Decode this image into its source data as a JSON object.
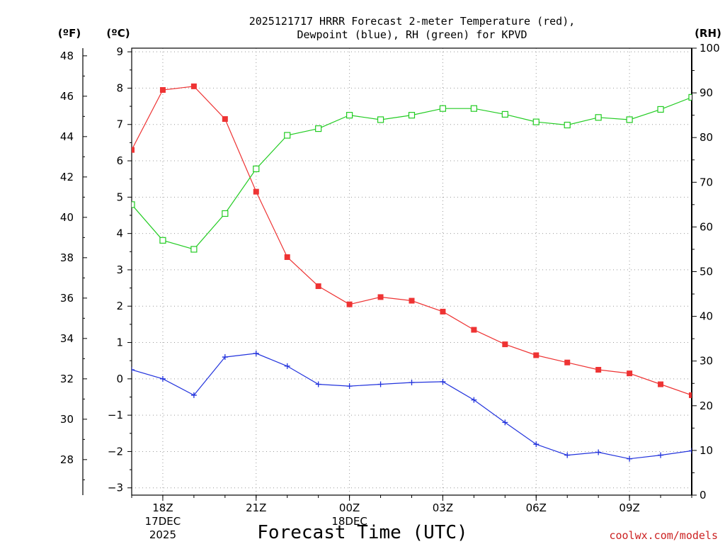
{
  "title_line1": "2025121717 HRRR Forecast 2-meter Temperature (red),",
  "title_line2": "Dewpoint (blue), RH (green) for KPVD",
  "unit_f": "(ºF)",
  "unit_c": "(ºC)",
  "unit_rh": "(RH)",
  "x_axis_label": "Forecast Time (UTC)",
  "credit": "coolwx.com/models",
  "colors": {
    "temperature": "#ee3333",
    "dewpoint": "#2233dd",
    "rh": "#22cc22",
    "credit": "#cc2222"
  },
  "chart_data": {
    "type": "line",
    "x_hours": [
      17,
      18,
      19,
      20,
      21,
      22,
      23,
      24,
      25,
      26,
      27,
      28,
      29,
      30,
      31,
      32,
      33,
      34,
      35
    ],
    "series": [
      {
        "name": "2-meter Temperature",
        "units": "C",
        "axis": "celsius",
        "values": [
          6.3,
          7.95,
          8.05,
          7.15,
          5.15,
          3.35,
          2.55,
          2.05,
          2.25,
          2.15,
          1.85,
          1.35,
          0.95,
          0.65,
          0.45,
          0.25,
          0.15,
          -0.15,
          -0.45
        ]
      },
      {
        "name": "Dewpoint",
        "units": "C",
        "axis": "celsius",
        "values": [
          0.25,
          0.0,
          -0.45,
          0.6,
          0.7,
          0.35,
          -0.15,
          -0.2,
          -0.15,
          -0.1,
          -0.08,
          -0.58,
          -1.2,
          -1.8,
          -2.1,
          -2.02,
          -2.2,
          -2.1,
          -1.98
        ]
      },
      {
        "name": "RH",
        "units": "%",
        "axis": "rh",
        "values": [
          65,
          57,
          55,
          63,
          73,
          80.5,
          82,
          85,
          84,
          85,
          86.5,
          86.5,
          85.2,
          83.5,
          82.8,
          84.5,
          84,
          86.3,
          89
        ]
      }
    ],
    "celsius_axis": {
      "min": -3.2,
      "max": 9.1,
      "ticks": [
        -3,
        -2,
        -1,
        0,
        1,
        2,
        3,
        4,
        5,
        6,
        7,
        8,
        9
      ]
    },
    "fahrenheit_axis": {
      "ticks": [
        28,
        30,
        32,
        34,
        36,
        38,
        40,
        42,
        44,
        46,
        48
      ]
    },
    "rh_axis": {
      "min": 0,
      "max": 100,
      "ticks": [
        0,
        10,
        20,
        30,
        40,
        50,
        60,
        70,
        80,
        90,
        100
      ]
    },
    "x_ticks": [
      {
        "hour": 18,
        "label": "18Z",
        "sub1": "17DEC",
        "sub2": "2025"
      },
      {
        "hour": 21,
        "label": "21Z"
      },
      {
        "hour": 24,
        "label": "00Z",
        "sub1": "18DEC"
      },
      {
        "hour": 27,
        "label": "03Z"
      },
      {
        "hour": 30,
        "label": "06Z"
      },
      {
        "hour": 33,
        "label": "09Z"
      }
    ]
  }
}
